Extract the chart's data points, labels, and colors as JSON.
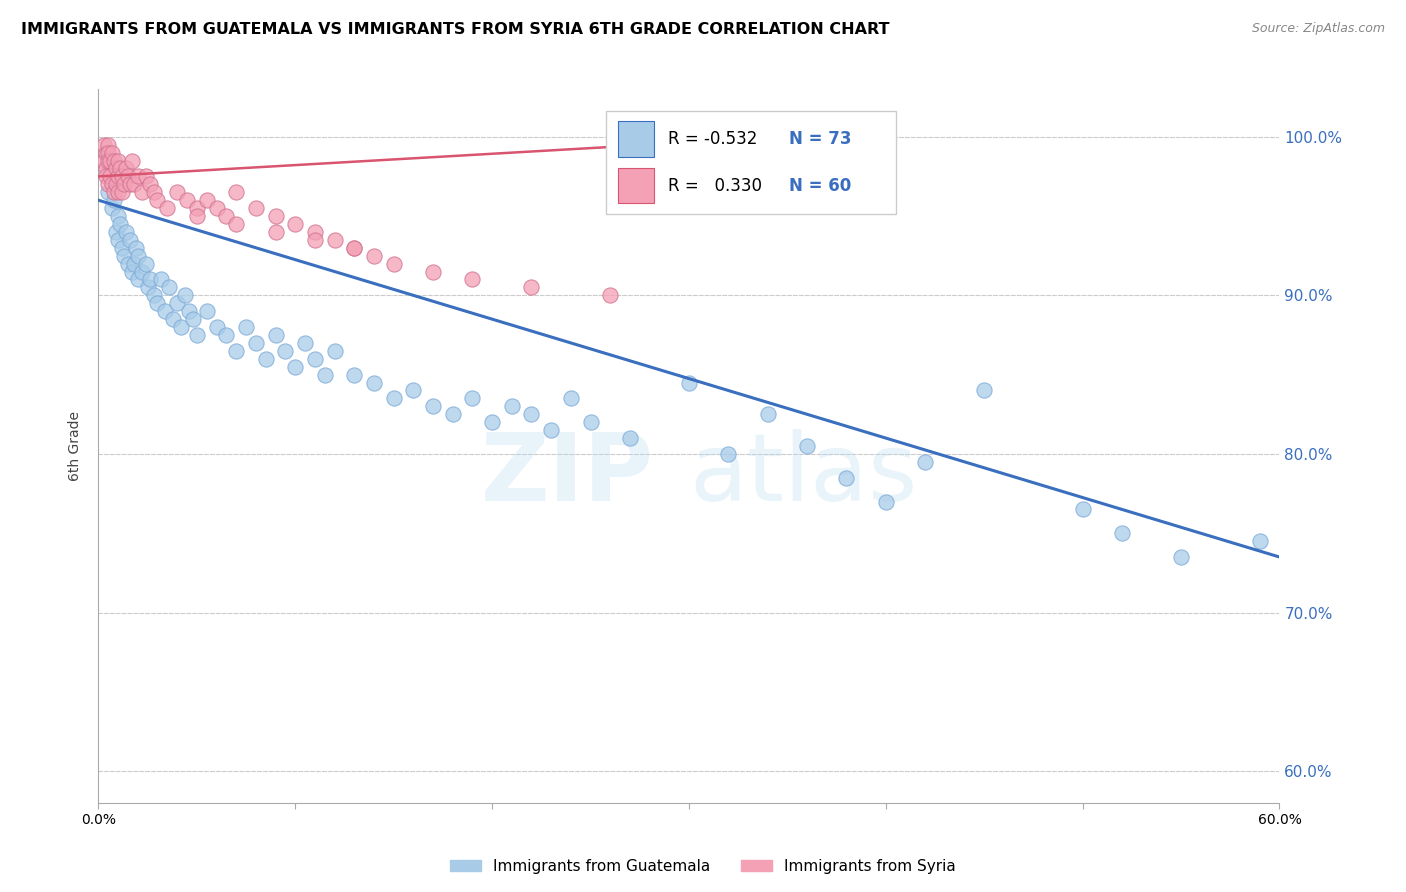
{
  "title": "IMMIGRANTS FROM GUATEMALA VS IMMIGRANTS FROM SYRIA 6TH GRADE CORRELATION CHART",
  "source": "Source: ZipAtlas.com",
  "ylabel": "6th Grade",
  "yticks": [
    60.0,
    70.0,
    80.0,
    90.0,
    100.0
  ],
  "ytick_labels": [
    "60.0%",
    "70.0%",
    "80.0%",
    "90.0%",
    "100.0%"
  ],
  "xlim": [
    0.0,
    0.6
  ],
  "ylim": [
    58.0,
    103.0
  ],
  "blue_color": "#a8cce8",
  "pink_color": "#f4a0b5",
  "blue_line_color": "#3a6fbf",
  "pink_line_color": "#d9546e",
  "watermark_zip": "ZIP",
  "watermark_atlas": "atlas",
  "legend_blue_r": "-0.532",
  "legend_blue_n": "73",
  "legend_pink_r": "0.330",
  "legend_pink_n": "60",
  "blue_scatter_x": [
    0.005,
    0.007,
    0.008,
    0.009,
    0.01,
    0.01,
    0.011,
    0.012,
    0.013,
    0.014,
    0.015,
    0.016,
    0.017,
    0.018,
    0.019,
    0.02,
    0.02,
    0.022,
    0.024,
    0.025,
    0.026,
    0.028,
    0.03,
    0.032,
    0.034,
    0.036,
    0.038,
    0.04,
    0.042,
    0.044,
    0.046,
    0.048,
    0.05,
    0.055,
    0.06,
    0.065,
    0.07,
    0.075,
    0.08,
    0.085,
    0.09,
    0.095,
    0.1,
    0.105,
    0.11,
    0.115,
    0.12,
    0.13,
    0.14,
    0.15,
    0.16,
    0.17,
    0.18,
    0.19,
    0.2,
    0.21,
    0.22,
    0.23,
    0.24,
    0.25,
    0.27,
    0.3,
    0.32,
    0.34,
    0.36,
    0.38,
    0.4,
    0.42,
    0.45,
    0.5,
    0.52,
    0.55,
    0.59
  ],
  "blue_scatter_y": [
    96.5,
    95.5,
    96.0,
    94.0,
    95.0,
    93.5,
    94.5,
    93.0,
    92.5,
    94.0,
    92.0,
    93.5,
    91.5,
    92.0,
    93.0,
    91.0,
    92.5,
    91.5,
    92.0,
    90.5,
    91.0,
    90.0,
    89.5,
    91.0,
    89.0,
    90.5,
    88.5,
    89.5,
    88.0,
    90.0,
    89.0,
    88.5,
    87.5,
    89.0,
    88.0,
    87.5,
    86.5,
    88.0,
    87.0,
    86.0,
    87.5,
    86.5,
    85.5,
    87.0,
    86.0,
    85.0,
    86.5,
    85.0,
    84.5,
    83.5,
    84.0,
    83.0,
    82.5,
    83.5,
    82.0,
    83.0,
    82.5,
    81.5,
    83.5,
    82.0,
    81.0,
    84.5,
    80.0,
    82.5,
    80.5,
    78.5,
    77.0,
    79.5,
    84.0,
    76.5,
    75.0,
    73.5,
    74.5
  ],
  "pink_scatter_x": [
    0.003,
    0.003,
    0.004,
    0.004,
    0.004,
    0.005,
    0.005,
    0.005,
    0.005,
    0.006,
    0.006,
    0.007,
    0.007,
    0.008,
    0.008,
    0.009,
    0.009,
    0.01,
    0.01,
    0.01,
    0.011,
    0.012,
    0.012,
    0.013,
    0.014,
    0.015,
    0.016,
    0.017,
    0.018,
    0.02,
    0.022,
    0.024,
    0.026,
    0.028,
    0.03,
    0.035,
    0.04,
    0.045,
    0.05,
    0.055,
    0.06,
    0.065,
    0.07,
    0.08,
    0.09,
    0.1,
    0.11,
    0.12,
    0.13,
    0.14,
    0.05,
    0.07,
    0.09,
    0.11,
    0.13,
    0.15,
    0.17,
    0.19,
    0.22,
    0.26
  ],
  "pink_scatter_y": [
    99.5,
    98.5,
    99.0,
    98.0,
    97.5,
    99.5,
    99.0,
    98.5,
    97.0,
    98.5,
    97.5,
    99.0,
    97.0,
    98.5,
    96.5,
    98.0,
    97.0,
    98.5,
    97.5,
    96.5,
    98.0,
    97.5,
    96.5,
    97.0,
    98.0,
    97.5,
    97.0,
    98.5,
    97.0,
    97.5,
    96.5,
    97.5,
    97.0,
    96.5,
    96.0,
    95.5,
    96.5,
    96.0,
    95.5,
    96.0,
    95.5,
    95.0,
    96.5,
    95.5,
    95.0,
    94.5,
    94.0,
    93.5,
    93.0,
    92.5,
    95.0,
    94.5,
    94.0,
    93.5,
    93.0,
    92.0,
    91.5,
    91.0,
    90.5,
    90.0
  ],
  "blue_trendline_x": [
    0.0,
    0.6
  ],
  "blue_trendline_y": [
    96.0,
    73.5
  ],
  "pink_trendline_x": [
    0.0,
    0.28
  ],
  "pink_trendline_y": [
    97.5,
    99.5
  ],
  "grid_color": "#cccccc",
  "axis_color": "#aaaaaa",
  "title_fontsize": 11.5,
  "source_fontsize": 9,
  "tick_fontsize": 10,
  "ylabel_fontsize": 10
}
